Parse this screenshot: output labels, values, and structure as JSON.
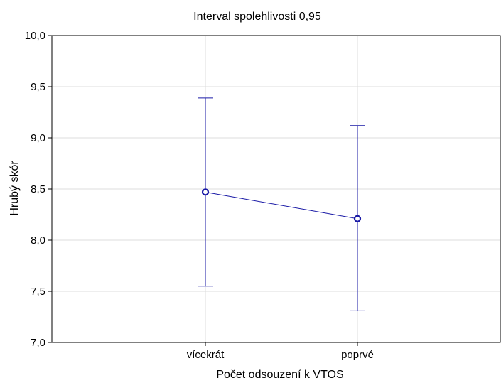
{
  "chart_data": {
    "type": "line",
    "title": "Interval spolehlivosti 0,95",
    "xlabel": "Počet odsouzení k VTOS",
    "ylabel": "Hrubý skór",
    "categories": [
      "vícekrát",
      "poprvé"
    ],
    "ylim": [
      7.0,
      10.0
    ],
    "yticks": [
      "7,0",
      "7,5",
      "8,0",
      "8,5",
      "9,0",
      "9,5",
      "10,0"
    ],
    "grid": true,
    "series": [
      {
        "values": [
          8.47,
          8.21
        ],
        "lower": [
          7.55,
          7.31
        ],
        "upper": [
          9.39,
          9.12
        ],
        "color": "#1a1aa6"
      }
    ]
  }
}
